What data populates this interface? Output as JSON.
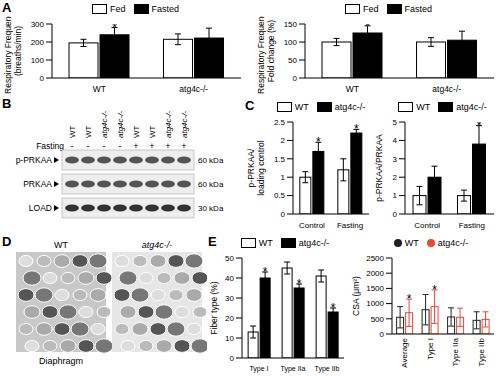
{
  "panel_labels": [
    "A",
    "B",
    "C",
    "D",
    "E"
  ],
  "chart_data": [
    {
      "type": "bar",
      "y_label": [
        "Respiratory Frequency",
        "(breaths/min)"
      ],
      "categories": [
        "WT",
        "atg4c-/-"
      ],
      "series": [
        {
          "name": "Fed",
          "color": "#ffffff",
          "values": [
            195,
            215
          ],
          "errors": [
            20,
            30
          ]
        },
        {
          "name": "Fasted",
          "color": "#000000",
          "values": [
            240,
            222
          ],
          "errors": [
            40,
            55
          ]
        }
      ],
      "ylim": [
        0,
        300
      ],
      "yticks": [
        0,
        100,
        200,
        300
      ],
      "legend": "top",
      "annotations": [
        {
          "text": "*",
          "series": "Fasted",
          "category": "WT"
        }
      ]
    },
    {
      "type": "bar",
      "y_label": [
        "Respiratory Frequency",
        "Fold change (%)"
      ],
      "categories": [
        "WT",
        "atg4c-/-"
      ],
      "series": [
        {
          "name": "Fed",
          "color": "#ffffff",
          "values": [
            100,
            100
          ],
          "errors": [
            10,
            12
          ]
        },
        {
          "name": "Fasted",
          "color": "#000000",
          "values": [
            125,
            105
          ],
          "errors": [
            20,
            25
          ]
        }
      ],
      "ylim": [
        0,
        150
      ],
      "yticks": [
        0,
        50,
        100,
        150
      ],
      "legend": "top",
      "annotations": [
        {
          "text": "*",
          "series": "Fasted",
          "category": "WT"
        }
      ]
    },
    {
      "type": "bar",
      "y_label": [
        "p-PRKAA/",
        "loading control"
      ],
      "categories": [
        "Control",
        "Fasting"
      ],
      "series": [
        {
          "name": "WT",
          "color": "#ffffff",
          "values": [
            1.0,
            1.2
          ],
          "errors": [
            0.15,
            0.3
          ]
        },
        {
          "name": "atg4c-/-",
          "color": "#000000",
          "values": [
            1.7,
            2.2
          ],
          "errors": [
            0.25,
            0.1
          ]
        }
      ],
      "ylim": [
        0,
        2.5
      ],
      "yticks": [
        0,
        0.5,
        1,
        1.5,
        2,
        2.5
      ],
      "legend": "top",
      "annotations": [
        {
          "text": "*",
          "series": "atg4c-/-",
          "category": "Control"
        },
        {
          "text": "*",
          "series": "atg4c-/-",
          "category": "Fasting"
        }
      ]
    },
    {
      "type": "bar",
      "y_label": [
        "p-PRKAA/PRKAA"
      ],
      "categories": [
        "Control",
        "Fasting"
      ],
      "series": [
        {
          "name": "WT",
          "color": "#ffffff",
          "values": [
            1.0,
            1.0
          ],
          "errors": [
            0.5,
            0.3
          ]
        },
        {
          "name": "atg4c-/-",
          "color": "#000000",
          "values": [
            2.0,
            3.8
          ],
          "errors": [
            0.6,
            1.0
          ]
        }
      ],
      "ylim": [
        0,
        5
      ],
      "yticks": [
        0,
        1,
        2,
        3,
        4,
        5
      ],
      "legend": "top",
      "annotations": [
        {
          "text": "*",
          "series": "atg4c-/-",
          "category": "Fasting"
        }
      ]
    },
    {
      "type": "bar",
      "y_label": [
        "Fiber type (%)"
      ],
      "categories": [
        "Type I",
        "Type IIa",
        "Type IIb"
      ],
      "series": [
        {
          "name": "WT",
          "color": "#ffffff",
          "values": [
            13,
            45,
            41
          ],
          "errors": [
            3,
            3,
            3
          ]
        },
        {
          "name": "atg4c-/-",
          "color": "#000000",
          "values": [
            40,
            35,
            23
          ],
          "errors": [
            3,
            2,
            2
          ]
        }
      ],
      "ylim": [
        0,
        50
      ],
      "yticks": [
        0,
        10,
        20,
        30,
        40,
        50
      ],
      "legend": "top",
      "annotations": [
        {
          "text": "*",
          "series": "atg4c-/-",
          "category": "Type I"
        },
        {
          "text": "*",
          "series": "atg4c-/-",
          "category": "Type IIa"
        },
        {
          "text": "*",
          "series": "atg4c-/-",
          "category": "Type IIb"
        }
      ]
    },
    {
      "type": "bar",
      "y_label": [
        "CSA (μm²)"
      ],
      "marker": "circle",
      "categories": [
        "Average",
        "Type I",
        "Type IIa",
        "Type IIb"
      ],
      "series": [
        {
          "name": "WT",
          "color": "#222222",
          "values": [
            550,
            800,
            560,
            450
          ],
          "errors": [
            350,
            500,
            300,
            280
          ]
        },
        {
          "name": "atg4c-/-",
          "color": "#e8463b",
          "values": [
            700,
            900,
            550,
            480
          ],
          "errors": [
            450,
            550,
            300,
            250
          ]
        }
      ],
      "ylim": [
        0,
        2500
      ],
      "yticks": [
        0,
        500,
        1000,
        1500,
        2000,
        2500
      ],
      "legend": "top",
      "annotations": [
        {
          "text": "*",
          "series": "atg4c-/-",
          "category": "Average"
        },
        {
          "text": "*",
          "series": "atg4c-/-",
          "category": "Type I"
        }
      ]
    }
  ],
  "blot": {
    "lanes": [
      {
        "genotype": "WT",
        "fasting": "-"
      },
      {
        "genotype": "WT",
        "fasting": "-"
      },
      {
        "genotype": "atg4c-/-",
        "fasting": "-"
      },
      {
        "genotype": "atg4c-/-",
        "fasting": "-"
      },
      {
        "genotype": "WT",
        "fasting": "+"
      },
      {
        "genotype": "WT",
        "fasting": "+"
      },
      {
        "genotype": "atg4c-/-",
        "fasting": "+"
      },
      {
        "genotype": "atg4c-/-",
        "fasting": "+"
      }
    ],
    "condition_label": "Fasting",
    "rows": [
      {
        "name": "p-PRKAA",
        "size": "60 kDa"
      },
      {
        "name": "PRKAA",
        "size": "60 kDa"
      },
      {
        "name": "LOAD",
        "size": "30 kDa"
      }
    ]
  },
  "micrograph": {
    "labels": [
      "WT",
      "atg4c-/-"
    ],
    "caption": "Diaphragm"
  }
}
